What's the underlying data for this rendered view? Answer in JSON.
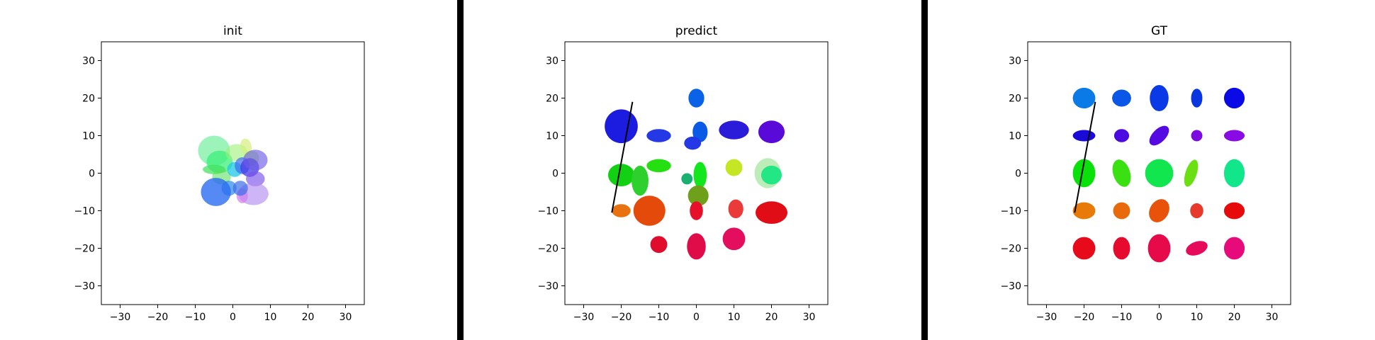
{
  "chart_data": [
    {
      "type": "scatter",
      "title": "init",
      "xlim": [
        -35,
        35
      ],
      "ylim": [
        -35,
        35
      ],
      "xticks": [
        -30,
        -20,
        -10,
        0,
        10,
        20,
        30
      ],
      "yticks": [
        -30,
        -20,
        -10,
        0,
        10,
        20,
        30
      ],
      "grid": false,
      "trajectory": [],
      "ellipses": [
        {
          "x": -5,
          "y": 6,
          "w": 8.5,
          "h": 8,
          "angle": 0,
          "color": "#7cf0a4",
          "alpha": 0.75
        },
        {
          "x": -3.5,
          "y": 3,
          "w": 7,
          "h": 6,
          "angle": 0,
          "color": "#3cf07a",
          "alpha": 0.75
        },
        {
          "x": 1,
          "y": 5.5,
          "w": 6,
          "h": 4.5,
          "angle": 0,
          "color": "#9cf078",
          "alpha": 0.6
        },
        {
          "x": 3.5,
          "y": 7,
          "w": 3,
          "h": 4.5,
          "angle": 10,
          "color": "#d6f07c",
          "alpha": 0.7
        },
        {
          "x": 5,
          "y": 4,
          "w": 4,
          "h": 4,
          "angle": 0,
          "color": "#b0f06a",
          "alpha": 0.7
        },
        {
          "x": -5,
          "y": 1,
          "w": 6,
          "h": 2.5,
          "angle": 0,
          "color": "#3ce05a",
          "alpha": 0.7
        },
        {
          "x": -3,
          "y": -1,
          "w": 5,
          "h": 4,
          "angle": 0,
          "color": "#60e060",
          "alpha": 0.6
        },
        {
          "x": 0.5,
          "y": 1,
          "w": 4,
          "h": 4,
          "angle": 0,
          "color": "#1ec8e6",
          "alpha": 0.75
        },
        {
          "x": 2.5,
          "y": 2,
          "w": 4,
          "h": 4.5,
          "angle": 0,
          "color": "#3c6cf0",
          "alpha": 0.7
        },
        {
          "x": 4.5,
          "y": 1.5,
          "w": 5,
          "h": 5,
          "angle": 0,
          "color": "#4638e6",
          "alpha": 0.75
        },
        {
          "x": 6,
          "y": 3.5,
          "w": 6.5,
          "h": 5.5,
          "angle": 0,
          "color": "#6e5ee6",
          "alpha": 0.65
        },
        {
          "x": 6,
          "y": -1.5,
          "w": 5,
          "h": 4,
          "angle": 0,
          "color": "#7a52e8",
          "alpha": 0.65
        },
        {
          "x": 5.5,
          "y": -5.5,
          "w": 8,
          "h": 6,
          "angle": 0,
          "color": "#b48ef0",
          "alpha": 0.65
        },
        {
          "x": 2.5,
          "y": -6,
          "w": 3,
          "h": 4,
          "angle": 0,
          "color": "#d07ef0",
          "alpha": 0.7
        },
        {
          "x": -1,
          "y": -4,
          "w": 4,
          "h": 4,
          "angle": 0,
          "color": "#2a8ae8",
          "alpha": 0.7
        },
        {
          "x": 2,
          "y": -4,
          "w": 4,
          "h": 4,
          "angle": 0,
          "color": "#3c6ce8",
          "alpha": 0.7
        },
        {
          "x": -4.5,
          "y": -5,
          "w": 8,
          "h": 7.5,
          "angle": 0,
          "color": "#2a6cf0",
          "alpha": 0.8
        }
      ]
    },
    {
      "type": "scatter",
      "title": "predict",
      "xlim": [
        -35,
        35
      ],
      "ylim": [
        -35,
        35
      ],
      "xticks": [
        -30,
        -20,
        -10,
        0,
        10,
        20,
        30
      ],
      "yticks": [
        -30,
        -20,
        -10,
        0,
        10,
        20,
        30
      ],
      "grid": false,
      "trajectory": [
        [
          -22.5,
          -10.5
        ],
        [
          -17,
          19
        ]
      ],
      "ellipses": [
        {
          "x": 0,
          "y": 20,
          "w": 4.2,
          "h": 5,
          "angle": 0,
          "color": "#0a62e6",
          "alpha": 1
        },
        {
          "x": -20,
          "y": 12.5,
          "w": 8.8,
          "h": 9,
          "angle": 0,
          "color": "#1c1ce0",
          "alpha": 1
        },
        {
          "x": -10,
          "y": 10,
          "w": 6.5,
          "h": 3.5,
          "angle": 0,
          "color": "#2438e6",
          "alpha": 1
        },
        {
          "x": 1,
          "y": 11,
          "w": 4,
          "h": 5.5,
          "angle": 0,
          "color": "#0a5ae6",
          "alpha": 1
        },
        {
          "x": -1,
          "y": 8,
          "w": 4.5,
          "h": 3.5,
          "angle": 0,
          "color": "#2438e6",
          "alpha": 1
        },
        {
          "x": 10,
          "y": 11.5,
          "w": 8,
          "h": 5,
          "angle": 0,
          "color": "#2a1cd8",
          "alpha": 1
        },
        {
          "x": 20,
          "y": 11,
          "w": 7,
          "h": 6,
          "angle": 0,
          "color": "#5a0ad8",
          "alpha": 1
        },
        {
          "x": -20,
          "y": -0.5,
          "w": 7,
          "h": 6,
          "angle": 0,
          "color": "#12d012",
          "alpha": 1
        },
        {
          "x": -15,
          "y": -2,
          "w": 4.5,
          "h": 8,
          "angle": 0,
          "color": "#2ed02e",
          "alpha": 1
        },
        {
          "x": -10,
          "y": 2,
          "w": 6.5,
          "h": 3.5,
          "angle": 0,
          "color": "#24e010",
          "alpha": 1
        },
        {
          "x": 1,
          "y": -0.5,
          "w": 3.5,
          "h": 7,
          "angle": 0,
          "color": "#12e61c",
          "alpha": 1
        },
        {
          "x": -2.5,
          "y": -1.5,
          "w": 3,
          "h": 3,
          "angle": 0,
          "color": "#18b06e",
          "alpha": 1
        },
        {
          "x": 10,
          "y": 1.5,
          "w": 4.5,
          "h": 4.5,
          "angle": 0,
          "color": "#c4e624",
          "alpha": 1
        },
        {
          "x": 19,
          "y": 0,
          "w": 7,
          "h": 8,
          "angle": 0,
          "color": "#a6e6a0",
          "alpha": 0.75
        },
        {
          "x": 20,
          "y": -0.5,
          "w": 5.5,
          "h": 5,
          "angle": 0,
          "color": "#12e680",
          "alpha": 0.9
        },
        {
          "x": 0.5,
          "y": -6,
          "w": 5.5,
          "h": 5.5,
          "angle": 0,
          "color": "#6ea01c",
          "alpha": 1
        },
        {
          "x": -20,
          "y": -10,
          "w": 5,
          "h": 3.5,
          "angle": 0,
          "color": "#e87210",
          "alpha": 1
        },
        {
          "x": -12.5,
          "y": -10,
          "w": 8.5,
          "h": 8,
          "angle": 0,
          "color": "#e44a0a",
          "alpha": 1
        },
        {
          "x": 0,
          "y": -10,
          "w": 3.5,
          "h": 5,
          "angle": 0,
          "color": "#e6102a",
          "alpha": 1
        },
        {
          "x": 10.5,
          "y": -9.5,
          "w": 4,
          "h": 5,
          "angle": 0,
          "color": "#ea3a3a",
          "alpha": 1
        },
        {
          "x": 20,
          "y": -10.5,
          "w": 8.5,
          "h": 6,
          "angle": 0,
          "color": "#e00c16",
          "alpha": 1
        },
        {
          "x": -10,
          "y": -19,
          "w": 4.5,
          "h": 4.5,
          "angle": 0,
          "color": "#e00c2e",
          "alpha": 1
        },
        {
          "x": 0,
          "y": -19.5,
          "w": 5,
          "h": 7,
          "angle": 0,
          "color": "#e00c4a",
          "alpha": 1
        },
        {
          "x": 10,
          "y": -17.5,
          "w": 6,
          "h": 6,
          "angle": 0,
          "color": "#e40e5e",
          "alpha": 1
        }
      ]
    },
    {
      "type": "scatter",
      "title": "GT",
      "xlim": [
        -35,
        35
      ],
      "ylim": [
        -35,
        35
      ],
      "xticks": [
        -30,
        -20,
        -10,
        0,
        10,
        20,
        30
      ],
      "yticks": [
        -30,
        -20,
        -10,
        0,
        10,
        20,
        30
      ],
      "grid": false,
      "trajectory": [
        [
          -22.5,
          -10.5
        ],
        [
          -17,
          19
        ]
      ],
      "ellipses": [
        {
          "x": -20,
          "y": 20,
          "w": 6,
          "h": 5.5,
          "angle": 0,
          "color": "#0a7ae6",
          "alpha": 1
        },
        {
          "x": -10,
          "y": 20,
          "w": 5,
          "h": 4.5,
          "angle": 0,
          "color": "#0a56e6",
          "alpha": 1
        },
        {
          "x": -10,
          "y": 20,
          "w": 5,
          "h": 4.5,
          "angle": 0,
          "color": "#0a56e6",
          "alpha": 1
        },
        {
          "x": -10,
          "y": 20,
          "w": 5,
          "h": 4.5,
          "angle": 0,
          "color": "#0a56e6",
          "alpha": 1
        },
        {
          "x": 0,
          "y": 20,
          "w": 5,
          "h": 7,
          "angle": 0,
          "color": "#0a3ae6",
          "alpha": 1
        },
        {
          "x": 10,
          "y": 20,
          "w": 3,
          "h": 5,
          "angle": 0,
          "color": "#0a36e0",
          "alpha": 1
        },
        {
          "x": 20,
          "y": 20,
          "w": 5.5,
          "h": 5.5,
          "angle": 0,
          "color": "#0a0ae6",
          "alpha": 1
        },
        {
          "x": -20,
          "y": 10,
          "w": 6,
          "h": 3,
          "angle": 0,
          "color": "#1a0ad8",
          "alpha": 1
        },
        {
          "x": -10,
          "y": 10,
          "w": 4,
          "h": 3.5,
          "angle": 0,
          "color": "#4a0ae0",
          "alpha": 1
        },
        {
          "x": 0,
          "y": 10,
          "w": 3.5,
          "h": 6.5,
          "angle": -45,
          "color": "#540ae0",
          "alpha": 1
        },
        {
          "x": 10,
          "y": 10,
          "w": 3,
          "h": 3,
          "angle": 0,
          "color": "#7a0ae0",
          "alpha": 1
        },
        {
          "x": 20,
          "y": 10,
          "w": 5.5,
          "h": 3,
          "angle": 0,
          "color": "#8a0ae6",
          "alpha": 1
        },
        {
          "x": -20,
          "y": 0,
          "w": 6,
          "h": 7.5,
          "angle": 0,
          "color": "#0ae00a",
          "alpha": 1
        },
        {
          "x": -10,
          "y": 0,
          "w": 4.5,
          "h": 7.5,
          "angle": 18,
          "color": "#3ae012",
          "alpha": 1
        },
        {
          "x": 0,
          "y": 0,
          "w": 7.5,
          "h": 7.5,
          "angle": 0,
          "color": "#12e64e",
          "alpha": 1
        },
        {
          "x": 8.5,
          "y": 0,
          "w": 3,
          "h": 7.5,
          "angle": -18,
          "color": "#6ae012",
          "alpha": 1
        },
        {
          "x": 20,
          "y": 0,
          "w": 5.5,
          "h": 7.5,
          "angle": 0,
          "color": "#12e68a",
          "alpha": 1
        },
        {
          "x": -20,
          "y": -10,
          "w": 6,
          "h": 4.5,
          "angle": 0,
          "color": "#e87a0a",
          "alpha": 1
        },
        {
          "x": -10,
          "y": -10,
          "w": 4.5,
          "h": 4.5,
          "angle": 0,
          "color": "#e86a0a",
          "alpha": 1
        },
        {
          "x": 0,
          "y": -10,
          "w": 5,
          "h": 6.5,
          "angle": -30,
          "color": "#e8520a",
          "alpha": 1
        },
        {
          "x": 10,
          "y": -10,
          "w": 3.5,
          "h": 4,
          "angle": 0,
          "color": "#e63a2a",
          "alpha": 1
        },
        {
          "x": 20,
          "y": -10,
          "w": 5.5,
          "h": 4.5,
          "angle": 0,
          "color": "#e60a0a",
          "alpha": 1
        },
        {
          "x": -20,
          "y": -20,
          "w": 6,
          "h": 6,
          "angle": 0,
          "color": "#e60a1a",
          "alpha": 1
        },
        {
          "x": -10,
          "y": -20,
          "w": 4.5,
          "h": 6,
          "angle": 0,
          "color": "#e60a2e",
          "alpha": 1
        },
        {
          "x": 0,
          "y": -20,
          "w": 6,
          "h": 7.5,
          "angle": 0,
          "color": "#e60a4a",
          "alpha": 1
        },
        {
          "x": 10,
          "y": -20,
          "w": 6,
          "h": 3.5,
          "angle": 20,
          "color": "#e60a5a",
          "alpha": 1
        },
        {
          "x": 20,
          "y": -20,
          "w": 5.5,
          "h": 6,
          "angle": 0,
          "color": "#e60a7a",
          "alpha": 1
        }
      ]
    }
  ]
}
